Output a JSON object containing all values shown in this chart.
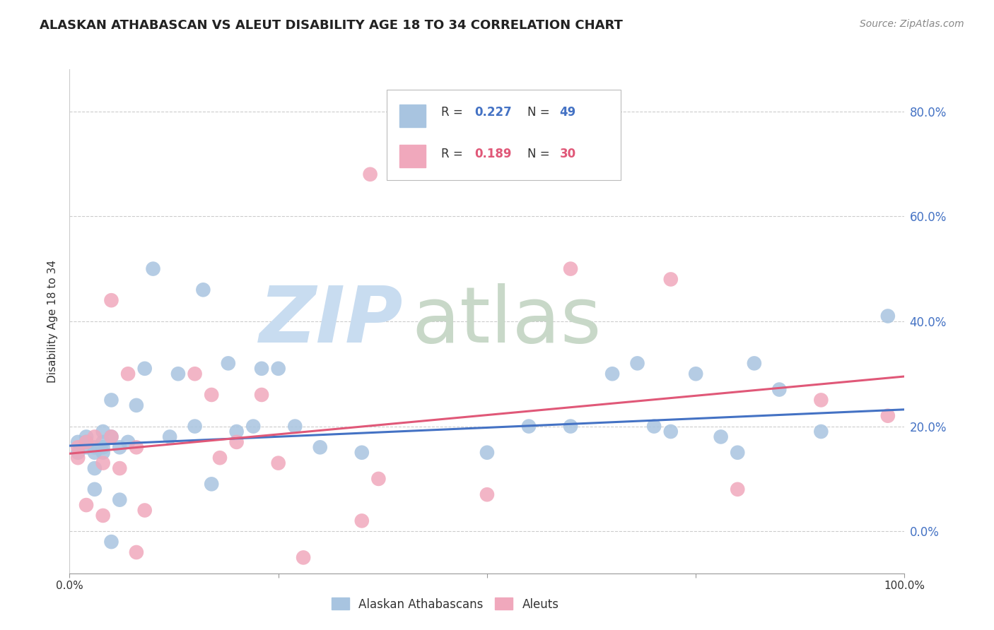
{
  "title": "ALASKAN ATHABASCAN VS ALEUT DISABILITY AGE 18 TO 34 CORRELATION CHART",
  "source": "Source: ZipAtlas.com",
  "ylabel": "Disability Age 18 to 34",
  "blue_color": "#a8c4e0",
  "pink_color": "#f0a8bc",
  "line_blue": "#4472c4",
  "line_pink": "#e05878",
  "right_axis_color": "#4472c4",
  "grid_color": "#cccccc",
  "athabascan_x": [
    0.01,
    0.01,
    0.02,
    0.02,
    0.02,
    0.03,
    0.03,
    0.03,
    0.03,
    0.04,
    0.04,
    0.04,
    0.04,
    0.05,
    0.05,
    0.05,
    0.06,
    0.06,
    0.07,
    0.08,
    0.09,
    0.1,
    0.12,
    0.13,
    0.15,
    0.16,
    0.17,
    0.19,
    0.2,
    0.22,
    0.23,
    0.25,
    0.27,
    0.3,
    0.35,
    0.5,
    0.55,
    0.6,
    0.65,
    0.68,
    0.7,
    0.72,
    0.75,
    0.78,
    0.8,
    0.82,
    0.85,
    0.9,
    0.98
  ],
  "athabascan_y": [
    0.17,
    0.15,
    0.18,
    0.16,
    0.17,
    0.15,
    0.16,
    0.08,
    0.12,
    0.17,
    0.19,
    0.15,
    0.16,
    -0.02,
    0.18,
    0.25,
    0.16,
    0.06,
    0.17,
    0.24,
    0.31,
    0.5,
    0.18,
    0.3,
    0.2,
    0.46,
    0.09,
    0.32,
    0.19,
    0.2,
    0.31,
    0.31,
    0.2,
    0.16,
    0.15,
    0.15,
    0.2,
    0.2,
    0.3,
    0.32,
    0.2,
    0.19,
    0.3,
    0.18,
    0.15,
    0.32,
    0.27,
    0.19,
    0.41
  ],
  "aleut_x": [
    0.01,
    0.01,
    0.02,
    0.02,
    0.03,
    0.04,
    0.04,
    0.05,
    0.05,
    0.06,
    0.07,
    0.08,
    0.08,
    0.09,
    0.15,
    0.17,
    0.18,
    0.2,
    0.23,
    0.25,
    0.28,
    0.35,
    0.36,
    0.37,
    0.5,
    0.6,
    0.72,
    0.8,
    0.9,
    0.98
  ],
  "aleut_y": [
    0.16,
    0.14,
    0.17,
    0.05,
    0.18,
    0.13,
    0.03,
    0.44,
    0.18,
    0.12,
    0.3,
    -0.04,
    0.16,
    0.04,
    0.3,
    0.26,
    0.14,
    0.17,
    0.26,
    0.13,
    -0.05,
    0.02,
    0.68,
    0.1,
    0.07,
    0.5,
    0.48,
    0.08,
    0.25,
    0.22
  ],
  "athabascan_line_x": [
    0.0,
    1.0
  ],
  "athabascan_line_y": [
    0.163,
    0.232
  ],
  "aleut_line_x": [
    0.0,
    1.0
  ],
  "aleut_line_y": [
    0.148,
    0.295
  ],
  "xlim": [
    0.0,
    1.0
  ],
  "ylim": [
    -0.08,
    0.88
  ],
  "yticks": [
    0.0,
    0.2,
    0.4,
    0.6,
    0.8
  ],
  "ytick_labels": [
    "0.0%",
    "20.0%",
    "40.0%",
    "60.0%",
    "80.0%"
  ]
}
